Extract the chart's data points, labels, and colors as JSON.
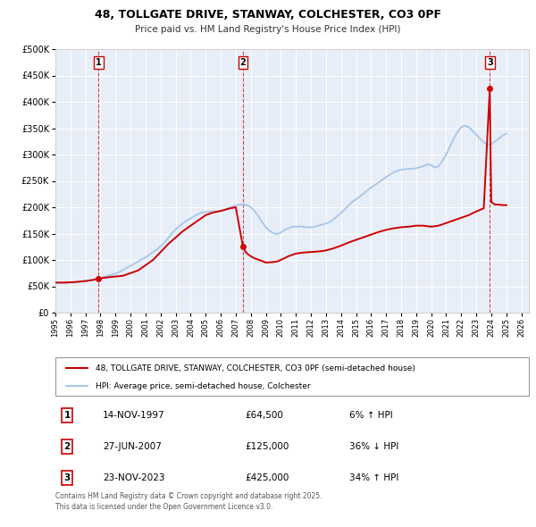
{
  "title": "48, TOLLGATE DRIVE, STANWAY, COLCHESTER, CO3 0PF",
  "subtitle": "Price paid vs. HM Land Registry's House Price Index (HPI)",
  "legend_line1": "48, TOLLGATE DRIVE, STANWAY, COLCHESTER, CO3 0PF (semi-detached house)",
  "legend_line2": "HPI: Average price, semi-detached house, Colchester",
  "footer": "Contains HM Land Registry data © Crown copyright and database right 2025.\nThis data is licensed under the Open Government Licence v3.0.",
  "price_color": "#cc0000",
  "hpi_color": "#aac8e8",
  "vline_color": "#cc0000",
  "plot_bg": "#e8eef8",
  "ylim": [
    0,
    500000
  ],
  "xlim_start": 1995.0,
  "xlim_end": 2026.5,
  "transactions": [
    {
      "date_val": 1997.87,
      "price": 64500,
      "label": "1"
    },
    {
      "date_val": 2007.48,
      "price": 125000,
      "label": "2"
    },
    {
      "date_val": 2023.9,
      "price": 425000,
      "label": "3"
    }
  ],
  "table_rows": [
    {
      "num": "1",
      "date": "14-NOV-1997",
      "price": "£64,500",
      "hpi": "6% ↑ HPI"
    },
    {
      "num": "2",
      "date": "27-JUN-2007",
      "price": "£125,000",
      "hpi": "36% ↓ HPI"
    },
    {
      "num": "3",
      "date": "23-NOV-2023",
      "price": "£425,000",
      "hpi": "34% ↑ HPI"
    }
  ],
  "hpi_data_years": [
    1995.0,
    1995.25,
    1995.5,
    1995.75,
    1996.0,
    1996.25,
    1996.5,
    1996.75,
    1997.0,
    1997.25,
    1997.5,
    1997.75,
    1998.0,
    1998.25,
    1998.5,
    1998.75,
    1999.0,
    1999.25,
    1999.5,
    1999.75,
    2000.0,
    2000.25,
    2000.5,
    2000.75,
    2001.0,
    2001.25,
    2001.5,
    2001.75,
    2002.0,
    2002.25,
    2002.5,
    2002.75,
    2003.0,
    2003.25,
    2003.5,
    2003.75,
    2004.0,
    2004.25,
    2004.5,
    2004.75,
    2005.0,
    2005.25,
    2005.5,
    2005.75,
    2006.0,
    2006.25,
    2006.5,
    2006.75,
    2007.0,
    2007.25,
    2007.5,
    2007.75,
    2008.0,
    2008.25,
    2008.5,
    2008.75,
    2009.0,
    2009.25,
    2009.5,
    2009.75,
    2010.0,
    2010.25,
    2010.5,
    2010.75,
    2011.0,
    2011.25,
    2011.5,
    2011.75,
    2012.0,
    2012.25,
    2012.5,
    2012.75,
    2013.0,
    2013.25,
    2013.5,
    2013.75,
    2014.0,
    2014.25,
    2014.5,
    2014.75,
    2015.0,
    2015.25,
    2015.5,
    2015.75,
    2016.0,
    2016.25,
    2016.5,
    2016.75,
    2017.0,
    2017.25,
    2017.5,
    2017.75,
    2018.0,
    2018.25,
    2018.5,
    2018.75,
    2019.0,
    2019.25,
    2019.5,
    2019.75,
    2020.0,
    2020.25,
    2020.5,
    2020.75,
    2021.0,
    2021.25,
    2021.5,
    2021.75,
    2022.0,
    2022.25,
    2022.5,
    2022.75,
    2023.0,
    2023.25,
    2023.5,
    2023.75,
    2024.0,
    2024.25,
    2024.5,
    2024.75,
    2025.0
  ],
  "hpi_data_values": [
    57000,
    56500,
    56000,
    56500,
    57000,
    57500,
    58000,
    59000,
    60000,
    61000,
    62500,
    64000,
    66000,
    68000,
    70000,
    72000,
    74000,
    77000,
    81000,
    85000,
    89000,
    93000,
    97000,
    101000,
    105000,
    110000,
    115000,
    120000,
    126000,
    133000,
    141000,
    150000,
    158000,
    164000,
    170000,
    175000,
    179000,
    183000,
    187000,
    190000,
    191000,
    191500,
    192000,
    192000,
    193000,
    195000,
    198000,
    201000,
    203000,
    205000,
    205500,
    204000,
    200000,
    193000,
    183000,
    172000,
    162000,
    155000,
    151000,
    149000,
    152000,
    157000,
    160000,
    163000,
    163000,
    163500,
    163000,
    162000,
    162000,
    163000,
    165000,
    167000,
    169000,
    172000,
    177000,
    183000,
    189000,
    196000,
    203000,
    210000,
    215000,
    220000,
    226000,
    232000,
    237000,
    242000,
    247000,
    252000,
    257000,
    262000,
    266000,
    269000,
    271000,
    272000,
    272500,
    273000,
    274000,
    276000,
    278000,
    281000,
    280000,
    275000,
    278000,
    288000,
    300000,
    315000,
    330000,
    343000,
    352000,
    355000,
    352000,
    345000,
    338000,
    330000,
    323000,
    318000,
    320000,
    325000,
    330000,
    336000,
    340000
  ],
  "price_years": [
    1995.0,
    1995.5,
    1996.0,
    1996.5,
    1997.0,
    1997.5,
    1997.87,
    1998.5,
    1999.5,
    2000.5,
    2001.5,
    2002.5,
    2003.5,
    2004.5,
    2005.0,
    2005.5,
    2006.0,
    2006.5,
    2007.0,
    2007.48,
    2007.6,
    2007.75,
    2008.0,
    2008.25,
    2008.75,
    2009.0,
    2009.25,
    2009.5,
    2009.75,
    2010.0,
    2010.5,
    2011.0,
    2011.5,
    2012.0,
    2012.5,
    2013.0,
    2013.5,
    2014.0,
    2014.5,
    2015.0,
    2015.5,
    2016.0,
    2016.5,
    2017.0,
    2017.5,
    2018.0,
    2018.5,
    2019.0,
    2019.5,
    2020.0,
    2020.5,
    2021.0,
    2021.5,
    2022.0,
    2022.5,
    2023.0,
    2023.5,
    2023.9,
    2024.0,
    2024.25,
    2024.5,
    2024.75,
    2025.0
  ],
  "price_values": [
    57000,
    57000,
    57500,
    58500,
    60000,
    62000,
    64500,
    67000,
    70000,
    80000,
    100000,
    130000,
    155000,
    175000,
    185000,
    190000,
    193000,
    197000,
    200000,
    125000,
    118000,
    112000,
    107000,
    103000,
    98000,
    95000,
    95500,
    96000,
    97000,
    100000,
    107000,
    112000,
    114000,
    115000,
    116000,
    118000,
    122000,
    127000,
    133000,
    138000,
    143000,
    148000,
    153000,
    157000,
    160000,
    162000,
    163000,
    165000,
    165000,
    163000,
    165000,
    170000,
    175000,
    180000,
    185000,
    192000,
    198000,
    425000,
    210000,
    205000,
    205000,
    204000,
    204000
  ]
}
